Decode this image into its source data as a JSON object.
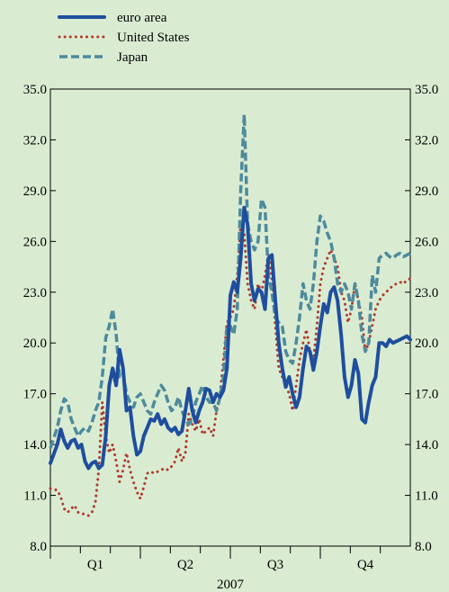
{
  "chart_data": {
    "type": "line",
    "title": "",
    "xlabel": "2007",
    "ylabel": "",
    "ylim": [
      8.0,
      35.0
    ],
    "yticks": [
      "8.0",
      "11.0",
      "14.0",
      "17.0",
      "20.0",
      "23.0",
      "26.0",
      "29.0",
      "32.0",
      "35.0"
    ],
    "x_periods": [
      "Q1",
      "Q2",
      "Q3",
      "Q4"
    ],
    "x_range": [
      0,
      52
    ],
    "grid": false,
    "legend_position": "top-left",
    "series": [
      {
        "name": "euro area",
        "color": "#1f4e9e",
        "style": "solid",
        "x": [
          0,
          1,
          1.5,
          2,
          2.5,
          3,
          3.5,
          4,
          4.5,
          5,
          5.5,
          6,
          6.5,
          7,
          7.5,
          8,
          8.5,
          9,
          9.5,
          10,
          10.5,
          11,
          11.5,
          12,
          12.5,
          13,
          13.5,
          14,
          14.5,
          15,
          15.5,
          16,
          16.5,
          17,
          17.5,
          18,
          18.5,
          19,
          19.5,
          20,
          20.5,
          21,
          21.5,
          22,
          22.5,
          23,
          23.5,
          24,
          24.5,
          25,
          25.5,
          26,
          26.5,
          27,
          27.5,
          28,
          28.5,
          29,
          29.5,
          30,
          30.5,
          31,
          31.5,
          32,
          32.5,
          33,
          33.5,
          34,
          34.5,
          35,
          35.5,
          36,
          36.5,
          37,
          37.5,
          38,
          38.5,
          39,
          39.5,
          40,
          40.5,
          41,
          41.5,
          42,
          42.5,
          43,
          43.5,
          44,
          44.5,
          45,
          45.5,
          46,
          46.5,
          47,
          47.5,
          48,
          48.5,
          49,
          49.5,
          50,
          50.5,
          51,
          51.5,
          52
        ],
        "values": [
          12.9,
          14.0,
          14.9,
          14.2,
          13.8,
          14.2,
          14.3,
          13.8,
          14.0,
          13.0,
          12.6,
          12.9,
          13.0,
          12.6,
          12.8,
          14.5,
          17.5,
          18.5,
          17.5,
          19.6,
          18.5,
          16.0,
          16.2,
          14.5,
          13.4,
          13.6,
          14.5,
          15.0,
          15.5,
          15.4,
          15.8,
          15.2,
          15.5,
          15.0,
          14.8,
          15.0,
          14.6,
          14.8,
          16.0,
          17.3,
          16.0,
          15.3,
          16.0,
          16.5,
          17.3,
          17.2,
          16.5,
          17.0,
          16.8,
          17.2,
          18.5,
          22.8,
          23.6,
          23.0,
          25.0,
          28.0,
          27.0,
          23.5,
          22.5,
          23.2,
          23.0,
          22.0,
          25.0,
          25.2,
          22.5,
          20.0,
          18.5,
          17.4,
          18.0,
          17.0,
          16.2,
          16.8,
          18.5,
          19.8,
          19.5,
          18.4,
          19.5,
          21.0,
          22.3,
          21.8,
          23.0,
          23.3,
          22.5,
          20.5,
          18.0,
          16.8,
          17.5,
          19.0,
          18.2,
          15.5,
          15.3,
          16.5,
          17.5,
          18.0,
          20.0,
          20.0,
          19.8,
          20.2,
          20.0,
          20.1,
          20.2,
          20.3,
          20.4,
          20.2
        ]
      },
      {
        "name": "United States",
        "color": "#b03a2e",
        "style": "dotted",
        "x": [
          0,
          1,
          1.5,
          2,
          2.5,
          3,
          3.5,
          4,
          4.5,
          5,
          5.5,
          6,
          6.5,
          7,
          7.5,
          8,
          8.5,
          9,
          9.5,
          10,
          10.5,
          11,
          11.5,
          12,
          12.5,
          13,
          13.5,
          14,
          14.5,
          15,
          15.5,
          16,
          16.5,
          17,
          17.5,
          18,
          18.5,
          19,
          19.5,
          20,
          20.5,
          21,
          21.5,
          22,
          22.5,
          23,
          23.5,
          24,
          24.5,
          25,
          25.5,
          26,
          26.5,
          27,
          27.5,
          28,
          28.5,
          29,
          29.5,
          30,
          30.5,
          31,
          31.5,
          32,
          32.5,
          33,
          33.5,
          34,
          34.5,
          35,
          35.5,
          36,
          36.5,
          37,
          37.5,
          38,
          38.5,
          39,
          39.5,
          40,
          40.5,
          41,
          41.5,
          42,
          42.5,
          43,
          43.5,
          44,
          44.5,
          45,
          45.5,
          46,
          46.5,
          47,
          47.5,
          48,
          48.5,
          49,
          49.5,
          50,
          50.5,
          51,
          51.5,
          52
        ],
        "values": [
          11.4,
          11.3,
          10.9,
          10.2,
          10.0,
          10.2,
          10.4,
          10.0,
          9.9,
          9.9,
          9.8,
          10.0,
          10.6,
          12.5,
          16.5,
          14.5,
          13.5,
          14.0,
          13.0,
          11.8,
          12.5,
          13.5,
          12.5,
          11.8,
          11.2,
          10.8,
          11.5,
          12.3,
          12.4,
          12.3,
          12.4,
          12.5,
          12.6,
          12.5,
          12.7,
          13.0,
          13.8,
          13.0,
          13.5,
          15.8,
          15.2,
          14.8,
          15.5,
          14.6,
          14.8,
          15.0,
          14.5,
          16.0,
          17.0,
          19.0,
          21.2,
          21.5,
          22.0,
          24.0,
          27.0,
          26.5,
          23.5,
          22.5,
          22.0,
          23.5,
          23.0,
          24.0,
          25.3,
          23.8,
          21.0,
          18.5,
          18.0,
          17.5,
          17.0,
          16.0,
          17.5,
          19.0,
          20.0,
          20.8,
          19.5,
          19.0,
          21.0,
          23.5,
          24.5,
          25.0,
          25.5,
          25.0,
          24.5,
          23.0,
          22.5,
          21.2,
          22.0,
          23.5,
          22.5,
          21.5,
          19.5,
          20.0,
          21.0,
          22.0,
          22.5,
          22.8,
          23.0,
          23.2,
          23.4,
          23.5,
          23.6,
          23.5,
          23.7,
          23.8
        ]
      },
      {
        "name": "Japan",
        "color": "#4d8a9c",
        "style": "dashed",
        "x": [
          0,
          1,
          1.5,
          2,
          2.5,
          3,
          3.5,
          4,
          4.5,
          5,
          5.5,
          6,
          6.5,
          7,
          7.5,
          8,
          8.5,
          9,
          9.5,
          10,
          10.5,
          11,
          11.5,
          12,
          12.5,
          13,
          13.5,
          14,
          14.5,
          15,
          15.5,
          16,
          16.5,
          17,
          17.5,
          18,
          18.5,
          19,
          19.5,
          20,
          20.5,
          21,
          21.5,
          22,
          22.5,
          23,
          23.5,
          24,
          24.5,
          25,
          25.5,
          26,
          26.5,
          27,
          27.5,
          28,
          28.5,
          29,
          29.5,
          30,
          30.5,
          31,
          31.5,
          32,
          32.5,
          33,
          33.5,
          34,
          34.5,
          35,
          35.5,
          36,
          36.5,
          37,
          37.5,
          38,
          38.5,
          39,
          39.5,
          40,
          40.5,
          41,
          41.5,
          42,
          42.5,
          43,
          43.5,
          44,
          44.5,
          45,
          45.5,
          46,
          46.5,
          47,
          47.5,
          48,
          48.5,
          49,
          49.5,
          50,
          50.5,
          51,
          51.5,
          52
        ],
        "values": [
          13.8,
          15.0,
          16.0,
          16.7,
          16.5,
          15.5,
          15.0,
          14.5,
          14.8,
          15.0,
          14.8,
          15.3,
          16.0,
          16.5,
          18.0,
          20.3,
          21.0,
          22.0,
          20.5,
          18.0,
          18.2,
          17.0,
          16.5,
          16.2,
          16.8,
          17.0,
          16.5,
          16.0,
          15.8,
          16.5,
          17.0,
          17.5,
          17.2,
          16.5,
          16.0,
          16.2,
          16.8,
          16.0,
          15.5,
          15.2,
          15.5,
          16.5,
          17.0,
          17.5,
          16.8,
          16.5,
          16.5,
          16.0,
          16.8,
          18.0,
          21.0,
          21.0,
          20.5,
          22.0,
          29.0,
          33.5,
          27.0,
          26.0,
          25.5,
          26.0,
          28.5,
          28.0,
          24.0,
          23.0,
          21.5,
          21.2,
          21.0,
          19.5,
          19.0,
          18.8,
          20.0,
          21.5,
          23.5,
          22.5,
          22.0,
          23.5,
          26.0,
          27.5,
          27.2,
          26.5,
          26.0,
          25.0,
          23.5,
          23.0,
          23.5,
          23.0,
          22.0,
          23.5,
          22.5,
          20.5,
          19.5,
          20.0,
          24.0,
          23.0,
          25.0,
          25.2,
          25.3,
          25.1,
          25.0,
          25.2,
          25.3,
          25.1,
          25.2,
          25.3
        ]
      }
    ]
  }
}
